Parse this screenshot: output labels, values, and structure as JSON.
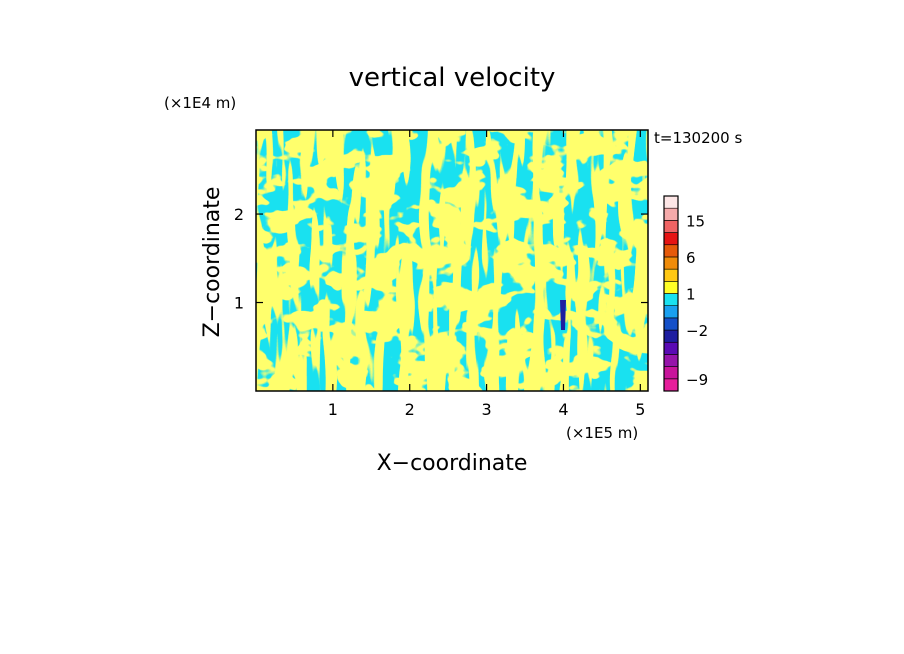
{
  "chart_data": {
    "type": "heatmap",
    "title": "vertical velocity",
    "time_label": "t=130200 s",
    "xlabel": "X−coordinate",
    "ylabel": "Z−coordinate",
    "x_unit": "(×1E5 m)",
    "y_unit": "(×1E4 m)",
    "xlim": [
      0.0,
      5.1
    ],
    "ylim": [
      0.0,
      2.95
    ],
    "x_ticks": [
      1,
      2,
      3,
      4,
      5
    ],
    "x_tick_labels": [
      "1",
      "2",
      "3",
      "4",
      "5"
    ],
    "y_ticks": [
      1,
      2
    ],
    "y_tick_labels": [
      "1",
      "2"
    ],
    "field_colors": {
      "negative": "#19e1f0",
      "positive": "#ffff26"
    },
    "colorbar": {
      "levels": [
        -12,
        -9,
        -6,
        -4,
        -3,
        -2,
        -1,
        0,
        1,
        2,
        3,
        6,
        9,
        12,
        15,
        18,
        24
      ],
      "colors": [
        "#e61e9b",
        "#c8149b",
        "#9614aa",
        "#5a0ab4",
        "#1e1ea0",
        "#1450c8",
        "#19a0f0",
        "#19e1f0",
        "#ffff26",
        "#ffc814",
        "#f08c0a",
        "#e65a0a",
        "#e61414",
        "#f06464",
        "#f5aaaa",
        "#fde6e6"
      ],
      "labeled_ticks": [
        -9,
        -2,
        1,
        6,
        15
      ],
      "tick_labels": [
        "−9",
        "−2",
        "1",
        "6",
        "15"
      ]
    }
  }
}
